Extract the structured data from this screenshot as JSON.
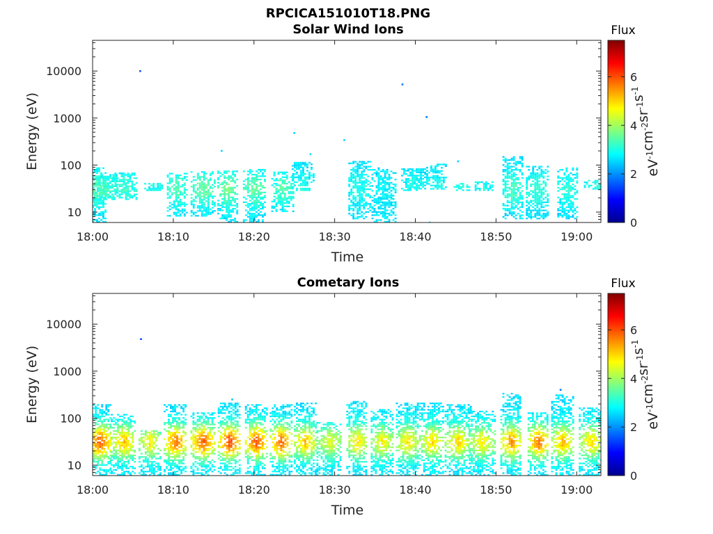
{
  "figure": {
    "title": "RPCICA151010T18.PNG"
  },
  "colormap": [
    "#00008f",
    "#0000ff",
    "#0080ff",
    "#00ffff",
    "#80ff80",
    "#ffff00",
    "#ff8000",
    "#ff0000",
    "#800000"
  ],
  "chart_data": [
    {
      "type": "heatmap",
      "title": "Solar Wind Ions",
      "xlabel": "Time",
      "ylabel": "Energy (eV)",
      "x_ticks": [
        "18:00",
        "18:10",
        "18:20",
        "18:30",
        "18:40",
        "18:50",
        "19:00"
      ],
      "x_range_minutes": [
        0,
        63
      ],
      "y_ticks": [
        "10",
        "100",
        "1000",
        "10000"
      ],
      "y_scale": "log",
      "y_range": [
        6,
        45000
      ],
      "colorbar": {
        "title": "Flux",
        "label": "eV-1cm-2sr-1s-1",
        "ticks": [
          "0",
          "2",
          "4",
          "6"
        ],
        "range": [
          0,
          7.5
        ]
      },
      "bursts": [
        {
          "t": 0.3,
          "emin": 6,
          "emax": 85,
          "peak": 3.5
        },
        {
          "t": 1.5,
          "emin": 18,
          "emax": 60,
          "peak": 3.3
        },
        {
          "t": 4.0,
          "emin": 18,
          "emax": 65,
          "peak": 3.2
        },
        {
          "t": 7.6,
          "emin": 28,
          "emax": 40,
          "peak": 3.0
        },
        {
          "t": 10.4,
          "emin": 8,
          "emax": 65,
          "peak": 3.4
        },
        {
          "t": 13.6,
          "emin": 8,
          "emax": 70,
          "peak": 3.6
        },
        {
          "t": 16.7,
          "emin": 6,
          "emax": 75,
          "peak": 3.7
        },
        {
          "t": 20.0,
          "emin": 6,
          "emax": 80,
          "peak": 3.6
        },
        {
          "t": 23.5,
          "emin": 10,
          "emax": 70,
          "peak": 3.4
        },
        {
          "t": 26.0,
          "emin": 28,
          "emax": 110,
          "peak": 3.0
        },
        {
          "t": 33.0,
          "emin": 7,
          "emax": 120,
          "peak": 3.0
        },
        {
          "t": 36.0,
          "emin": 6,
          "emax": 85,
          "peak": 2.8
        },
        {
          "t": 39.8,
          "emin": 28,
          "emax": 80,
          "peak": 2.9
        },
        {
          "t": 42.5,
          "emin": 30,
          "emax": 100,
          "peak": 3.0
        },
        {
          "t": 45.7,
          "emin": 28,
          "emax": 40,
          "peak": 3.0
        },
        {
          "t": 48.5,
          "emin": 28,
          "emax": 45,
          "peak": 2.9
        },
        {
          "t": 52.0,
          "emin": 7,
          "emax": 150,
          "peak": 3.3
        },
        {
          "t": 55.0,
          "emin": 7,
          "emax": 90,
          "peak": 3.2
        },
        {
          "t": 58.8,
          "emin": 7,
          "emax": 85,
          "peak": 3.1
        },
        {
          "t": 62.4,
          "emin": 30,
          "emax": 45,
          "peak": 3.0
        }
      ],
      "isolated_points": [
        {
          "t": 5.9,
          "e": 10000,
          "v": 1.5
        },
        {
          "t": 16.0,
          "e": 200,
          "v": 2.5
        },
        {
          "t": 25.0,
          "e": 480,
          "v": 2.5
        },
        {
          "t": 27.0,
          "e": 170,
          "v": 2.6
        },
        {
          "t": 31.2,
          "e": 340,
          "v": 2.5
        },
        {
          "t": 38.4,
          "e": 5200,
          "v": 1.8
        },
        {
          "t": 41.4,
          "e": 1050,
          "v": 1.8
        },
        {
          "t": 45.3,
          "e": 120,
          "v": 2.5
        },
        {
          "t": 41.8,
          "e": 6,
          "v": 2.6
        }
      ]
    },
    {
      "type": "heatmap",
      "title": "Cometary Ions",
      "xlabel": "Time",
      "ylabel": "Energy (eV)",
      "x_ticks": [
        "18:00",
        "18:10",
        "18:20",
        "18:30",
        "18:40",
        "18:50",
        "19:00"
      ],
      "x_range_minutes": [
        0,
        63
      ],
      "y_ticks": [
        "10",
        "100",
        "1000",
        "10000"
      ],
      "y_scale": "log",
      "y_range": [
        6,
        45000
      ],
      "colorbar": {
        "title": "Flux",
        "label": "eV-1cm-2sr-1s-1",
        "ticks": [
          "0",
          "2",
          "4",
          "6"
        ],
        "range": [
          0,
          7.5
        ]
      },
      "bursts": [
        {
          "t": 0.8,
          "emin": 6,
          "emax": 190,
          "peak": 6.0
        },
        {
          "t": 3.8,
          "emin": 6,
          "emax": 120,
          "peak": 5.2
        },
        {
          "t": 7.0,
          "emin": 6,
          "emax": 55,
          "peak": 4.8
        },
        {
          "t": 10.2,
          "emin": 6,
          "emax": 185,
          "peak": 5.8
        },
        {
          "t": 13.6,
          "emin": 6,
          "emax": 130,
          "peak": 6.0
        },
        {
          "t": 16.9,
          "emin": 6,
          "emax": 200,
          "peak": 6.2
        },
        {
          "t": 20.2,
          "emin": 6,
          "emax": 185,
          "peak": 6.1
        },
        {
          "t": 23.3,
          "emin": 6,
          "emax": 185,
          "peak": 5.9
        },
        {
          "t": 26.3,
          "emin": 6,
          "emax": 200,
          "peak": 5.2
        },
        {
          "t": 29.3,
          "emin": 6,
          "emax": 80,
          "peak": 4.5
        },
        {
          "t": 32.7,
          "emin": 6,
          "emax": 230,
          "peak": 5.0
        },
        {
          "t": 35.8,
          "emin": 6,
          "emax": 150,
          "peak": 4.8
        },
        {
          "t": 39.0,
          "emin": 6,
          "emax": 200,
          "peak": 4.9
        },
        {
          "t": 42.0,
          "emin": 6,
          "emax": 210,
          "peak": 5.0
        },
        {
          "t": 45.2,
          "emin": 6,
          "emax": 190,
          "peak": 5.0
        },
        {
          "t": 48.2,
          "emin": 6,
          "emax": 140,
          "peak": 4.8
        },
        {
          "t": 51.8,
          "emin": 6,
          "emax": 320,
          "peak": 5.6
        },
        {
          "t": 55.2,
          "emin": 6,
          "emax": 130,
          "peak": 5.8
        },
        {
          "t": 58.2,
          "emin": 6,
          "emax": 300,
          "peak": 5.3
        },
        {
          "t": 61.7,
          "emin": 6,
          "emax": 160,
          "peak": 5.0
        }
      ],
      "isolated_points": [
        {
          "t": 6.0,
          "e": 4800,
          "v": 1.5
        },
        {
          "t": 17.3,
          "e": 250,
          "v": 2.4
        },
        {
          "t": 58.0,
          "e": 400,
          "v": 1.8
        }
      ]
    }
  ]
}
